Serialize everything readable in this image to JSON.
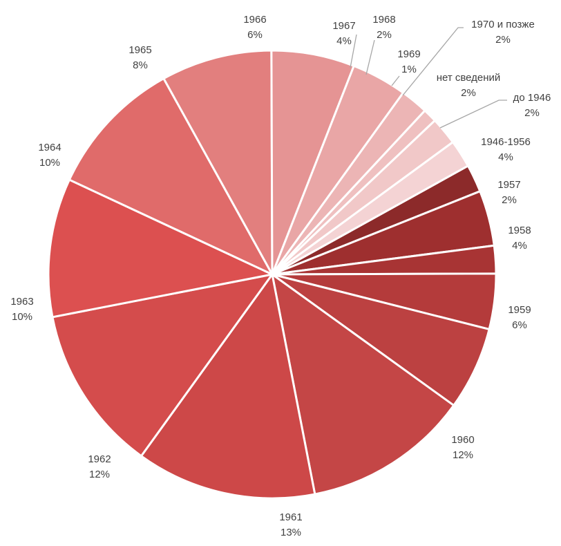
{
  "chart_data": {
    "type": "pie",
    "slices": [
      {
        "label": "до 1946",
        "value": 2,
        "value_label": "2%",
        "color": "#8c2a2a"
      },
      {
        "label": "1946-1956",
        "value": 4,
        "value_label": "4%",
        "color": "#9e2f2f"
      },
      {
        "label": "1957",
        "value": 2,
        "value_label": "2%",
        "color": "#a83434"
      },
      {
        "label": "1958",
        "value": 4,
        "value_label": "4%",
        "color": "#b43b3b"
      },
      {
        "label": "1959",
        "value": 6,
        "value_label": "6%",
        "color": "#bc4141"
      },
      {
        "label": "1960",
        "value": 12,
        "value_label": "12%",
        "color": "#c44646"
      },
      {
        "label": "1961",
        "value": 13,
        "value_label": "13%",
        "color": "#cd4848"
      },
      {
        "label": "1962",
        "value": 12,
        "value_label": "12%",
        "color": "#d44c4c"
      },
      {
        "label": "1963",
        "value": 10,
        "value_label": "10%",
        "color": "#dc5050"
      },
      {
        "label": "1964",
        "value": 10,
        "value_label": "10%",
        "color": "#e06b6a"
      },
      {
        "label": "1965",
        "value": 8,
        "value_label": "8%",
        "color": "#e27f7e"
      },
      {
        "label": "1966",
        "value": 6,
        "value_label": "6%",
        "color": "#e59494"
      },
      {
        "label": "1967",
        "value": 4,
        "value_label": "4%",
        "color": "#e9a6a6"
      },
      {
        "label": "1968",
        "value": 2,
        "value_label": "2%",
        "color": "#ecb5b5"
      },
      {
        "label": "1969",
        "value": 1,
        "value_label": "1%",
        "color": "#efc0c0"
      },
      {
        "label": "1970 и позже",
        "value": 2,
        "value_label": "2%",
        "color": "#f1c8c8"
      },
      {
        "label": "нет сведений",
        "value": 2,
        "value_label": "2%",
        "color": "#f4d3d4"
      }
    ],
    "title": "",
    "legend": "none"
  }
}
